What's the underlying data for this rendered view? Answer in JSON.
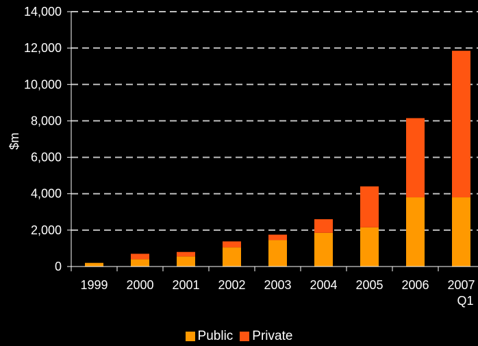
{
  "chart_data": {
    "type": "bar",
    "stacked": true,
    "categories": [
      "1999",
      "2000",
      "2001",
      "2002",
      "2003",
      "2004",
      "2005",
      "2006",
      "2007 Q1"
    ],
    "category_lines": [
      [
        "1999"
      ],
      [
        "2000"
      ],
      [
        "2001"
      ],
      [
        "2002"
      ],
      [
        "2003"
      ],
      [
        "2004"
      ],
      [
        "2005"
      ],
      [
        "2006"
      ],
      [
        "2007",
        "Q1"
      ]
    ],
    "series": [
      {
        "name": "Public",
        "color": "#FF9900",
        "values": [
          200,
          400,
          550,
          1050,
          1450,
          1850,
          2150,
          3800,
          3800
        ]
      },
      {
        "name": "Private",
        "color": "#FF5511",
        "values": [
          0,
          300,
          250,
          330,
          300,
          750,
          2250,
          4350,
          8050
        ]
      }
    ],
    "ylabel": "$m",
    "ylim": [
      0,
      14000
    ],
    "yticks": [
      0,
      2000,
      4000,
      6000,
      8000,
      10000,
      12000,
      14000
    ],
    "ytick_labels": [
      "0",
      "2,000",
      "4,000",
      "6,000",
      "8,000",
      "10,000",
      "12,000",
      "14,000"
    ],
    "grid": true,
    "legend_position": "bottom"
  }
}
